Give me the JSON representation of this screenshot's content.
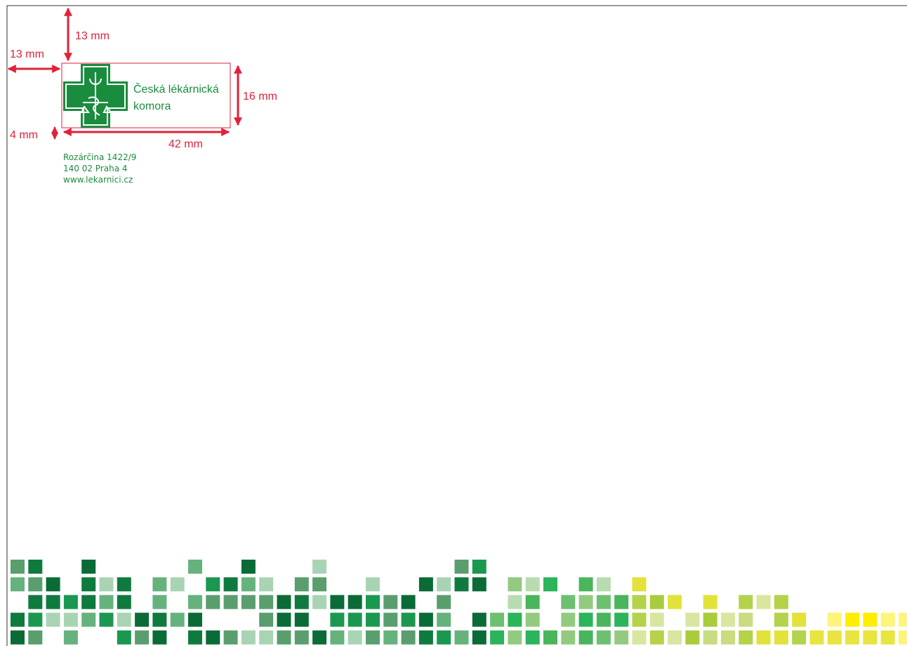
{
  "dimensions": {
    "top": "13 mm",
    "left": "13 mm",
    "height": "16 mm",
    "gap": "4 mm",
    "width": "42 mm"
  },
  "logo": {
    "line1": "Česká lékárnická",
    "line2": "komora"
  },
  "address": [
    "Rozárčina 1422/9",
    "140 02 Praha 4",
    "www.lekarnici.cz"
  ]
}
